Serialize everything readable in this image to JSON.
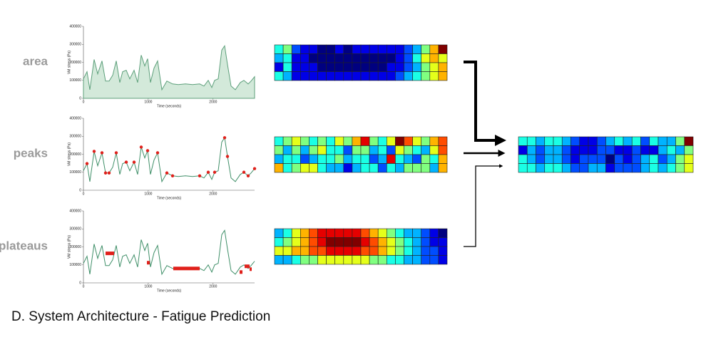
{
  "panels": [
    {
      "label": "area",
      "kind": "area"
    },
    {
      "label": "peaks",
      "kind": "peaks"
    },
    {
      "label": "plateaus",
      "kind": "plateaus"
    }
  ],
  "axes": {
    "xlim": [
      0,
      2640
    ],
    "xticks": [
      0,
      1000,
      2000
    ],
    "ylim": [
      0,
      400000
    ],
    "yticks": [
      0,
      100000,
      200000,
      300000,
      400000
    ],
    "xlabel": "Time (seconds)",
    "ylabel": "VM stress (Pa)"
  },
  "signal": {
    "x": [
      0,
      55,
      99,
      165,
      220,
      286,
      341,
      396,
      451,
      506,
      561,
      605,
      660,
      715,
      781,
      836,
      891,
      946,
      990,
      1034,
      1089,
      1144,
      1210,
      1287,
      1375,
      1463,
      1573,
      1683,
      1793,
      1859,
      1925,
      1980,
      2024,
      2079,
      2134,
      2178,
      2222,
      2277,
      2343,
      2420,
      2475,
      2541,
      2585,
      2640
    ],
    "values": [
      108000,
      148000,
      48000,
      216000,
      136000,
      208000,
      96000,
      96000,
      128000,
      208000,
      88000,
      148000,
      156000,
      108000,
      156000,
      88000,
      240000,
      180000,
      220000,
      88000,
      168000,
      208000,
      48000,
      96000,
      80000,
      76000,
      80000,
      76000,
      80000,
      68000,
      100000,
      60000,
      100000,
      108000,
      268000,
      292000,
      188000,
      68000,
      48000,
      88000,
      100000,
      80000,
      96000,
      120000
    ]
  },
  "peaks": {
    "x": [
      55,
      165,
      286,
      341,
      396,
      506,
      660,
      781,
      891,
      990,
      1144,
      1287,
      1375,
      1793,
      1925,
      2024,
      2178,
      2222,
      2475,
      2541,
      2640
    ],
    "values": [
      148000,
      216000,
      208000,
      96000,
      96000,
      208000,
      156000,
      156000,
      240000,
      220000,
      208000,
      96000,
      80000,
      80000,
      100000,
      100000,
      292000,
      188000,
      100000,
      80000,
      120000
    ]
  },
  "plateaus": [
    {
      "x": [
        341,
        473
      ],
      "value": 164000
    },
    {
      "x": [
        979,
        1023
      ],
      "value": 112000
    },
    {
      "x": [
        1386,
        1793
      ],
      "value": 80000
    },
    {
      "x": [
        2409,
        2453
      ],
      "value": 60000
    },
    {
      "x": [
        2486,
        2563
      ],
      "value": 92000
    },
    {
      "x": [
        2563,
        2596
      ],
      "value": 76000
    }
  ],
  "heatmap_scale": [
    0,
    10
  ],
  "heatmaps": [
    {
      "cells": [
        [
          4,
          5,
          2,
          1,
          1,
          0,
          0,
          1,
          0,
          1,
          1,
          1,
          1,
          1,
          1,
          2,
          3,
          5,
          7,
          10
        ],
        [
          3,
          4,
          1,
          1,
          0,
          0,
          0,
          0,
          0,
          0,
          0,
          0,
          0,
          0,
          1,
          2,
          4,
          6,
          7,
          6
        ],
        [
          1,
          4,
          1,
          1,
          1,
          0,
          0,
          0,
          0,
          0,
          0,
          0,
          0,
          1,
          1,
          2,
          3,
          5,
          6,
          7
        ],
        [
          4,
          3,
          1,
          1,
          1,
          1,
          1,
          1,
          1,
          1,
          1,
          1,
          1,
          1,
          2,
          3,
          4,
          5,
          6,
          7
        ]
      ]
    },
    {
      "cells": [
        [
          4,
          5,
          6,
          5,
          4,
          5,
          4,
          6,
          5,
          7,
          9,
          5,
          4,
          6,
          10,
          8,
          6,
          5,
          7,
          8
        ],
        [
          5,
          3,
          5,
          3,
          5,
          6,
          4,
          4,
          2,
          5,
          5,
          3,
          4,
          2,
          6,
          5,
          4,
          3,
          6,
          8
        ],
        [
          3,
          4,
          4,
          2,
          3,
          4,
          4,
          5,
          3,
          4,
          4,
          2,
          3,
          9,
          4,
          3,
          2,
          5,
          4,
          7
        ],
        [
          7,
          4,
          5,
          6,
          6,
          4,
          3,
          3,
          1,
          3,
          4,
          4,
          2,
          4,
          3,
          5,
          5,
          5,
          3,
          7
        ]
      ]
    },
    {
      "cells": [
        [
          3,
          4,
          6,
          7,
          8,
          9,
          9,
          9,
          9,
          9,
          8,
          7,
          6,
          5,
          4,
          3,
          3,
          2,
          1,
          0
        ],
        [
          4,
          5,
          6,
          7,
          8,
          9,
          10,
          10,
          10,
          10,
          9,
          8,
          7,
          6,
          5,
          4,
          3,
          2,
          1,
          1
        ],
        [
          6,
          6,
          7,
          7,
          8,
          8,
          9,
          9,
          9,
          9,
          8,
          8,
          7,
          6,
          5,
          4,
          3,
          2,
          2,
          1
        ],
        [
          3,
          3,
          4,
          5,
          5,
          6,
          6,
          6,
          6,
          6,
          6,
          5,
          5,
          4,
          4,
          3,
          3,
          2,
          2,
          1
        ]
      ]
    }
  ],
  "output": {
    "cells": [
      [
        4,
        4,
        3,
        4,
        4,
        3,
        2,
        1,
        1,
        2,
        3,
        4,
        3,
        4,
        2,
        4,
        3,
        3,
        5,
        10
      ],
      [
        1,
        3,
        2,
        3,
        3,
        2,
        1,
        1,
        1,
        2,
        2,
        1,
        1,
        2,
        1,
        1,
        3,
        4,
        3,
        5
      ],
      [
        4,
        3,
        2,
        3,
        3,
        2,
        1,
        2,
        2,
        2,
        0,
        2,
        1,
        2,
        3,
        4,
        2,
        3,
        5,
        6
      ],
      [
        4,
        4,
        3,
        4,
        4,
        3,
        2,
        2,
        3,
        3,
        1,
        2,
        2,
        2,
        3,
        4,
        3,
        4,
        5,
        6
      ]
    ]
  },
  "caption": "D. System Architecture - Fatigue Prediction"
}
